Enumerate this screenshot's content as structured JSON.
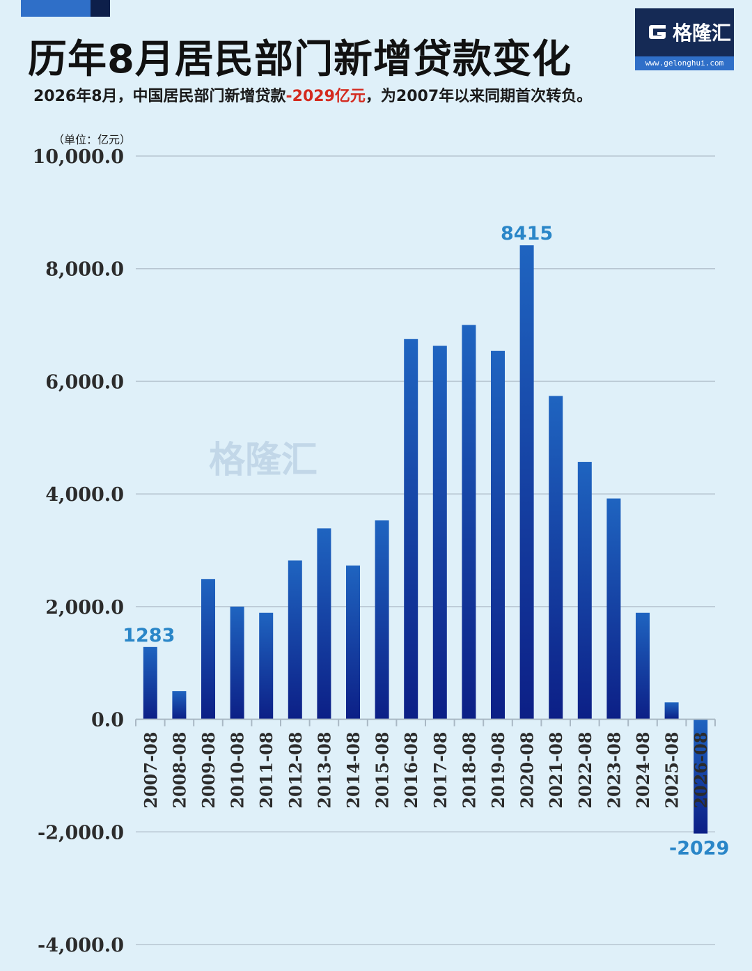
{
  "header": {
    "title": "历年8月居民部门新增贷款变化",
    "subtitle_pre": "2026年8月，中国居民部门新增贷款",
    "subtitle_highlight": "-2029亿元",
    "subtitle_post": "，为2007年以来同期首次转负。",
    "unit": "（单位：亿元）"
  },
  "logo": {
    "name": "格隆汇",
    "url": "www.gelonghui.com"
  },
  "watermark": "格隆汇",
  "colors": {
    "bar_top": "#1f64c0",
    "bar_bottom": "#0c1f86",
    "label": "#2a86c8",
    "highlight": "#d42a1f"
  },
  "chart_data": {
    "type": "bar",
    "title": "历年8月居民部门新增贷款变化",
    "ylabel": "（单位：亿元）",
    "ylim": [
      -4000,
      10000
    ],
    "yticks": [
      "10,000.0",
      "8,000.0",
      "6,000.0",
      "4,000.0",
      "2,000.0",
      "0.0",
      "-2,000.0",
      "-4,000.0"
    ],
    "ytick_values": [
      10000,
      8000,
      6000,
      4000,
      2000,
      0,
      -2000,
      -4000
    ],
    "categories": [
      "2007-08",
      "2008-08",
      "2009-08",
      "2010-08",
      "2011-08",
      "2012-08",
      "2013-08",
      "2014-08",
      "2015-08",
      "2016-08",
      "2017-08",
      "2018-08",
      "2019-08",
      "2020-08",
      "2021-08",
      "2022-08",
      "2023-08",
      "2024-08",
      "2025-08",
      "2026-08"
    ],
    "values": [
      1283,
      500,
      2490,
      2000,
      1890,
      2820,
      3390,
      2730,
      3530,
      6750,
      6630,
      7000,
      6540,
      8415,
      5740,
      4570,
      3920,
      1890,
      300,
      -2029
    ],
    "data_labels": [
      {
        "index": 0,
        "text": "1283"
      },
      {
        "index": 13,
        "text": "8415"
      },
      {
        "index": 19,
        "text": "-2029"
      }
    ],
    "grid": true
  }
}
